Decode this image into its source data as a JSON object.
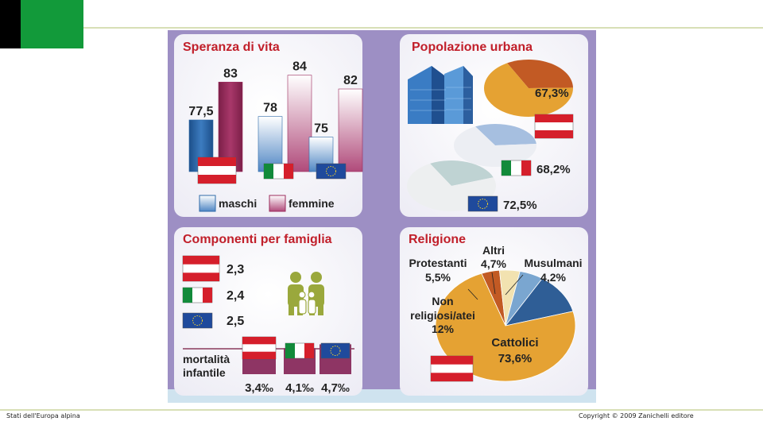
{
  "slide": {
    "footer_left": "Stati dell'Europa alpina",
    "footer_right": "Copyright © 2009 Zanichelli editore"
  },
  "colors": {
    "frame": "#9d8fc4",
    "panel": "#ffffff",
    "title": "#c11f2a",
    "male": "#2e6aa8",
    "female": "#9b2b5c",
    "orange": "#e5a233",
    "dark_orange": "#c25a24",
    "austria_red": "#d51f2b",
    "italy_green": "#128a3a",
    "eu_blue": "#1f4a9c"
  },
  "chart_data": [
    {
      "type": "bar",
      "title": "Speranza di vita",
      "categories": [
        "Austria",
        "Italia",
        "UE"
      ],
      "series": [
        {
          "name": "maschi",
          "values": [
            77.5,
            78,
            75
          ],
          "labels": [
            "77,5",
            "78",
            "75"
          ]
        },
        {
          "name": "femmine",
          "values": [
            83,
            84,
            82
          ],
          "labels": [
            "83",
            "84",
            "82"
          ]
        }
      ],
      "legend": [
        "maschi",
        "femmine"
      ],
      "ylim": [
        0,
        90
      ]
    },
    {
      "type": "pie",
      "title": "Popolazione urbana",
      "items": [
        {
          "flag": "Austria",
          "value": 67.3,
          "label": "67,3%"
        },
        {
          "flag": "Italia",
          "value": 68.2,
          "label": "68,2%"
        },
        {
          "flag": "UE",
          "value": 72.5,
          "label": "72,5%"
        }
      ]
    },
    {
      "type": "bar",
      "title": "Componenti per famiglia",
      "items": [
        {
          "flag": "Austria",
          "value": 2.3,
          "label": "2,3"
        },
        {
          "flag": "Italia",
          "value": 2.4,
          "label": "2,4"
        },
        {
          "flag": "UE",
          "value": 2.5,
          "label": "2,5"
        }
      ],
      "mortality": {
        "label_line1": "mortalità",
        "label_line2": "infantile",
        "items": [
          {
            "flag": "Austria",
            "value": 3.4,
            "label": "3,4‰"
          },
          {
            "flag": "Italia",
            "value": 4.1,
            "label": "4,1‰"
          },
          {
            "flag": "UE",
            "value": 4.7,
            "label": "4,7‰"
          }
        ]
      }
    },
    {
      "type": "pie",
      "title": "Religione",
      "country": "Austria",
      "slices": [
        {
          "name": "Cattolici",
          "value": 73.6,
          "label": "73,6%"
        },
        {
          "name": "Non religiosi/atei",
          "value": 12,
          "label": "12%"
        },
        {
          "name": "Protestanti",
          "value": 5.5,
          "label": "5,5%"
        },
        {
          "name": "Altri",
          "value": 4.7,
          "label": "4,7%"
        },
        {
          "name": "Musulmani",
          "value": 4.2,
          "label": "4,2%"
        }
      ],
      "text": {
        "protestanti": "Protestanti",
        "altri": "Altri",
        "musulmani": "Musulmani",
        "non_line1": "Non",
        "non_line2": "religiosi/atei",
        "cattolici": "Cattolici"
      }
    }
  ]
}
